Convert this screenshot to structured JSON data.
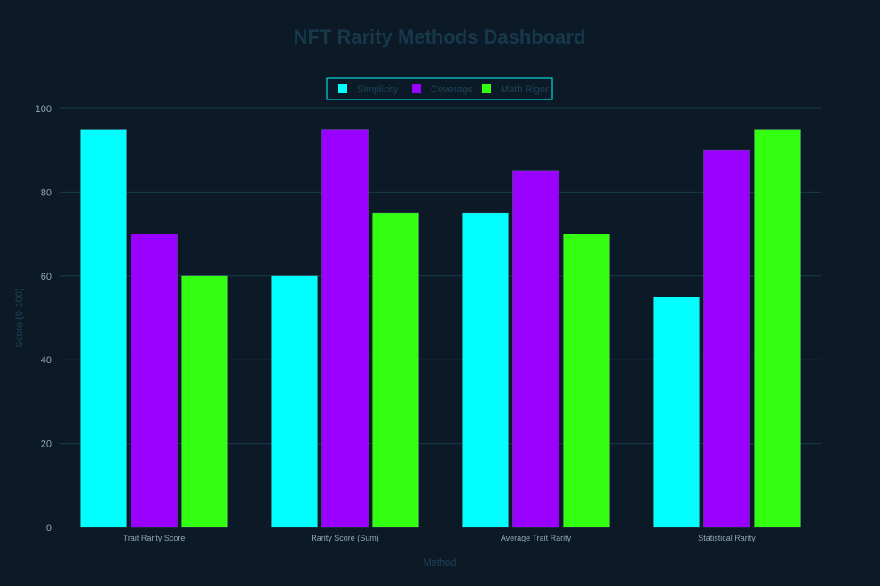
{
  "colors": {
    "background": "#0c1a28",
    "title": "#17384a",
    "axis_text": "#8fa6b8",
    "axis_title": "#1d4458",
    "grid": "#1b3a48",
    "legend_border": "#00ffff",
    "legend_text": "#1d4458"
  },
  "chart_data": {
    "type": "bar",
    "title": "NFT Rarity Methods Dashboard",
    "xlabel": "Method",
    "ylabel": "Score (0-100)",
    "ylim": [
      0,
      100
    ],
    "yticks": [
      0,
      20,
      40,
      60,
      80,
      100
    ],
    "grid": true,
    "legend_position": "top-center",
    "categories": [
      "Trait Rarity Score",
      "Rarity Score (Sum)",
      "Average Trait Rarity",
      "Statistical Rarity"
    ],
    "series": [
      {
        "name": "Simplicity",
        "color": "#00ffff",
        "values": [
          95,
          60,
          75,
          55
        ]
      },
      {
        "name": "Coverage",
        "color": "#9900ff",
        "values": [
          70,
          95,
          85,
          90
        ]
      },
      {
        "name": "Math Rigor",
        "color": "#33ff11",
        "values": [
          60,
          75,
          70,
          95
        ]
      }
    ]
  }
}
